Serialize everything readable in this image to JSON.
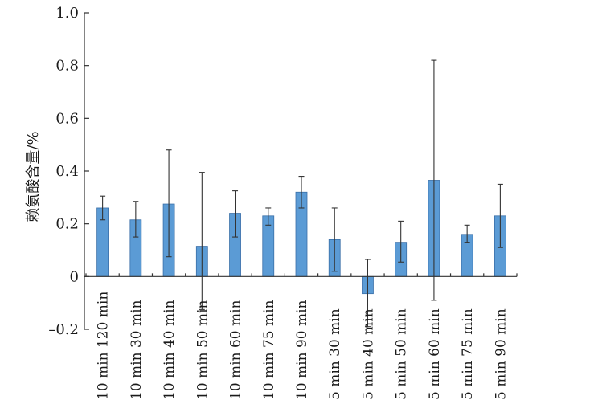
{
  "chart_data": {
    "type": "bar",
    "ylabel": "赖氨酸含量/%",
    "ylim": [
      -0.2,
      1.0
    ],
    "yticks": [
      -0.2,
      0,
      0.2,
      0.4,
      0.6,
      0.8,
      1.0
    ],
    "ytick_labels": [
      "–0.2",
      "0",
      "0.2",
      "0.4",
      "0.6",
      "0.8",
      "1.0"
    ],
    "categories": [
      "10 min 120 min",
      "10 min 30 min",
      "10 min 40 min",
      "10 min 50 min",
      "10 min 60 min",
      "10 min 75 min",
      "10 min 90 min",
      "5 min 30 min",
      "5 min 40 min",
      "5 min 50 min",
      "5 min 60 min",
      "5 min 75 min",
      "5 min 90 min"
    ],
    "values": [
      0.26,
      0.215,
      0.275,
      0.115,
      0.24,
      0.23,
      0.32,
      0.14,
      -0.065,
      0.13,
      0.365,
      0.16,
      0.23
    ],
    "error_low": [
      0.215,
      0.15,
      0.075,
      -0.125,
      0.15,
      0.195,
      0.26,
      0.02,
      -0.19,
      0.055,
      -0.09,
      0.13,
      0.11
    ],
    "error_high": [
      0.305,
      0.285,
      0.48,
      0.395,
      0.325,
      0.26,
      0.38,
      0.26,
      0.065,
      0.21,
      0.82,
      0.195,
      0.35
    ],
    "bar_color": "#5b9bd5",
    "grid": false,
    "legend": "none"
  }
}
